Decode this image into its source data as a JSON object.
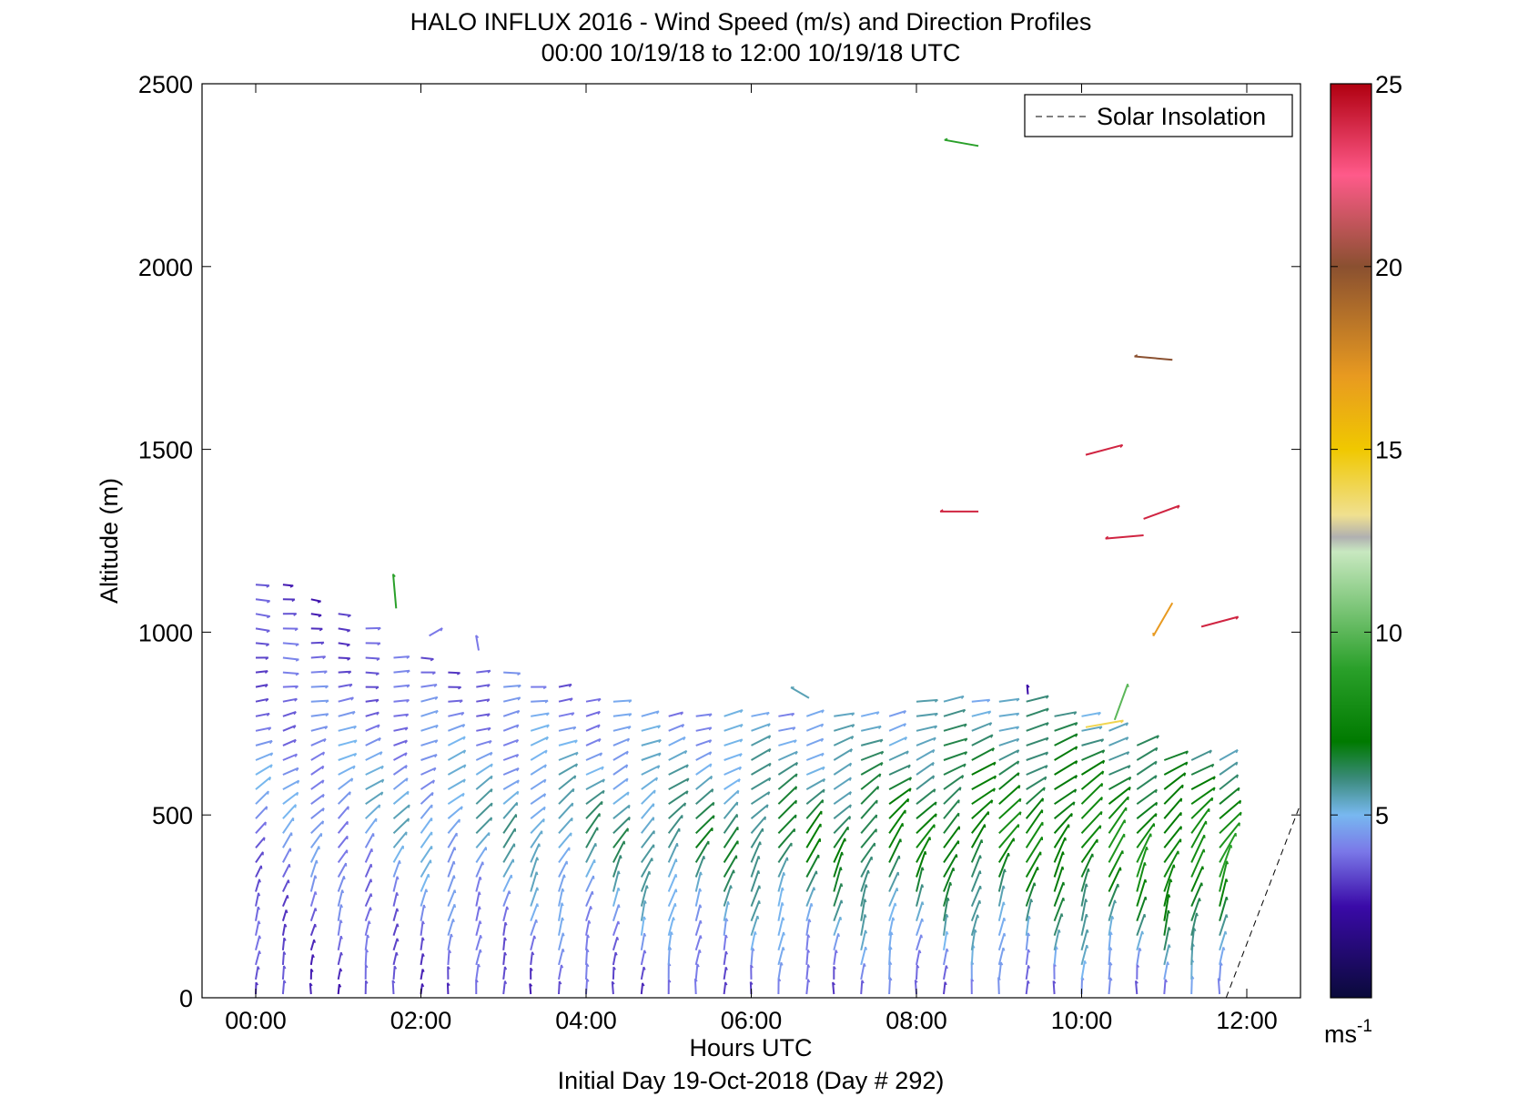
{
  "chart_data": {
    "type": "wind-barb-profile",
    "title": "HALO INFLUX 2016 - Wind Speed (m/s) and Direction Profiles",
    "subtitle": "00:00 10/19/18 to 12:00 10/19/18  UTC",
    "xlabel": "Hours UTC",
    "xlabel2": "Initial Day 19-Oct-2018 (Day # 292)",
    "ylabel": "Altitude (m)",
    "xlim": [
      -0.65,
      12.65
    ],
    "ylim": [
      0,
      2500
    ],
    "x_ticks": [
      {
        "value": 0,
        "label": "00:00"
      },
      {
        "value": 2,
        "label": "02:00"
      },
      {
        "value": 4,
        "label": "04:00"
      },
      {
        "value": 6,
        "label": "06:00"
      },
      {
        "value": 8,
        "label": "08:00"
      },
      {
        "value": 10,
        "label": "10:00"
      },
      {
        "value": 12,
        "label": "12:00"
      }
    ],
    "y_ticks": [
      {
        "value": 0,
        "label": "0"
      },
      {
        "value": 500,
        "label": "500"
      },
      {
        "value": 1000,
        "label": "1000"
      },
      {
        "value": 1500,
        "label": "1500"
      },
      {
        "value": 2000,
        "label": "2000"
      },
      {
        "value": 2500,
        "label": "2500"
      }
    ],
    "legend": {
      "entries": [
        "Solar Insolation"
      ],
      "placement": "top-right"
    },
    "colorbar": {
      "range": [
        0,
        25
      ],
      "unit": "ms",
      "unit_exponent": "-1",
      "ticks": [
        {
          "value": 5,
          "label": "5"
        },
        {
          "value": 10,
          "label": "10"
        },
        {
          "value": 15,
          "label": "15"
        },
        {
          "value": 20,
          "label": "20"
        },
        {
          "value": 25,
          "label": "25"
        }
      ],
      "stops": [
        {
          "value": 0,
          "color": "#0a0a3a"
        },
        {
          "value": 2.5,
          "color": "#3a0aa8"
        },
        {
          "value": 4,
          "color": "#7a78e8"
        },
        {
          "value": 5,
          "color": "#78b8f0"
        },
        {
          "value": 6,
          "color": "#3a8a7a"
        },
        {
          "value": 7,
          "color": "#007a00"
        },
        {
          "value": 9,
          "color": "#2aa02a"
        },
        {
          "value": 12.2,
          "color": "#c8e8c0"
        },
        {
          "value": 12.6,
          "color": "#b0b0b0"
        },
        {
          "value": 13.2,
          "color": "#f0e090"
        },
        {
          "value": 15,
          "color": "#f0c800"
        },
        {
          "value": 17,
          "color": "#e89a20"
        },
        {
          "value": 20,
          "color": "#8a5030"
        },
        {
          "value": 22.5,
          "color": "#ff5a8a"
        },
        {
          "value": 25,
          "color": "#b00010"
        }
      ]
    },
    "solar_insolation": [
      {
        "x": 11.75,
        "y": 0
      },
      {
        "x": 12.65,
        "y": 530
      }
    ],
    "profiles": {
      "times": [
        0.0,
        0.33,
        0.67,
        1.0,
        1.33,
        1.67,
        2.0,
        2.33,
        2.67,
        3.0,
        3.33,
        3.67,
        4.0,
        4.33,
        4.67,
        5.0,
        5.33,
        5.67,
        6.0,
        6.33,
        6.67,
        7.0,
        7.33,
        7.67,
        8.0,
        8.33,
        8.67,
        9.0,
        9.33,
        9.67,
        10.0,
        10.33,
        10.67,
        11.0,
        11.33,
        11.67
      ],
      "top_altitude_m": [
        1150,
        1130,
        1100,
        1080,
        1030,
        960,
        930,
        920,
        900,
        900,
        870,
        860,
        840,
        830,
        800,
        790,
        790,
        790,
        790,
        790,
        780,
        770,
        790,
        800,
        810,
        820,
        830,
        830,
        810,
        800,
        780,
        750,
        720,
        680,
        660,
        650
      ],
      "level_spacing_m": 40,
      "direction_deg": [
        {
          "altitude": 0,
          "value": 180
        },
        {
          "altitude": 100,
          "value": 190
        },
        {
          "altitude": 300,
          "value": 200
        },
        {
          "altitude": 600,
          "value": 240
        },
        {
          "altitude": 900,
          "value": 270
        },
        {
          "altitude": 1200,
          "value": 280
        }
      ],
      "speed_ms": {
        "early": {
          "near_surface": 3,
          "mid": 4.5,
          "upper": 3
        },
        "late": {
          "near_surface": 4,
          "mid": 8.5,
          "upper": 6
        }
      }
    },
    "isolated_vectors": [
      {
        "x": 8.75,
        "y": 2330,
        "speed": 9,
        "direction_deg": 100
      },
      {
        "x": 11.1,
        "y": 1745,
        "speed": 20,
        "direction_deg": 95
      },
      {
        "x": 10.05,
        "y": 1485,
        "speed": 24,
        "direction_deg": 255
      },
      {
        "x": 8.75,
        "y": 1330,
        "speed": 24,
        "direction_deg": 90
      },
      {
        "x": 10.75,
        "y": 1310,
        "speed": 24,
        "direction_deg": 250
      },
      {
        "x": 10.75,
        "y": 1265,
        "speed": 24,
        "direction_deg": 85
      },
      {
        "x": 11.1,
        "y": 1080,
        "speed": 17,
        "direction_deg": 30
      },
      {
        "x": 11.45,
        "y": 1015,
        "speed": 24,
        "direction_deg": 255
      },
      {
        "x": 1.7,
        "y": 1065,
        "speed": 9,
        "direction_deg": 175
      },
      {
        "x": 2.1,
        "y": 990,
        "speed": 4,
        "direction_deg": 240
      },
      {
        "x": 2.7,
        "y": 950,
        "speed": 4,
        "direction_deg": 170
      },
      {
        "x": 6.7,
        "y": 820,
        "speed": 5.5,
        "direction_deg": 120
      },
      {
        "x": 9.35,
        "y": 830,
        "speed": 2.5,
        "direction_deg": 175
      },
      {
        "x": 10.05,
        "y": 740,
        "speed": 14,
        "direction_deg": 260
      },
      {
        "x": 10.4,
        "y": 760,
        "speed": 10,
        "direction_deg": 200
      }
    ]
  }
}
